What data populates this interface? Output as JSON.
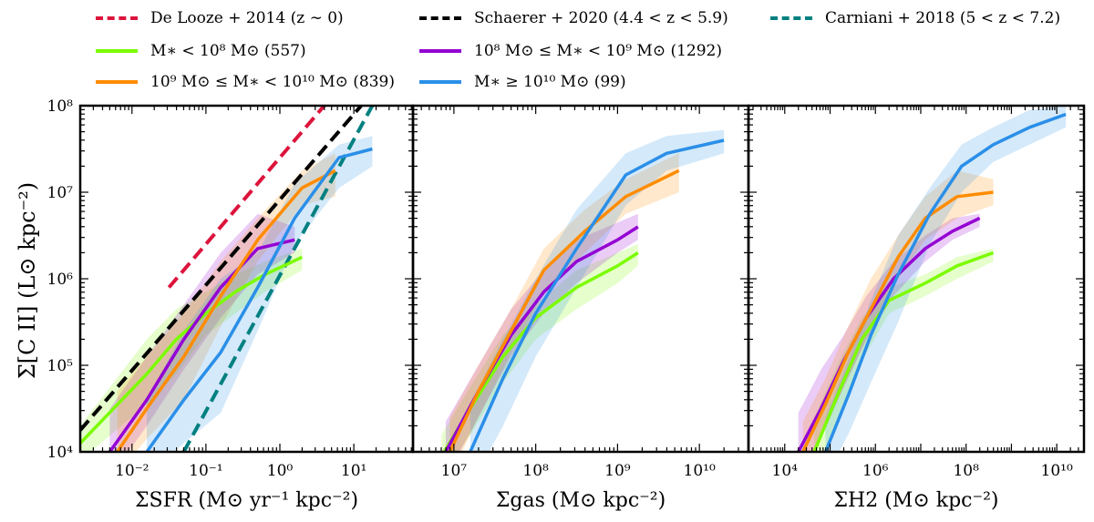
{
  "legend": [
    {
      "key": "delooze",
      "label": "De Looze + 2014 (z ∼ 0)",
      "color": "#dc143c",
      "style": "dashed"
    },
    {
      "key": "schaerer",
      "label": "Schaerer + 2020 (4.4 < z < 5.9)",
      "color": "#000000",
      "style": "dashed"
    },
    {
      "key": "carniani",
      "label": "Carniani + 2018 (5 < z < 7.2)",
      "color": "#008080",
      "style": "dashed"
    },
    {
      "key": "m8",
      "label": "M∗ < 10⁸ M⊙ (557)",
      "color": "#7cfc00",
      "style": "solid"
    },
    {
      "key": "m89",
      "label": "10⁸ M⊙ ≤ M∗ < 10⁹ M⊙ (1292)",
      "color": "#9400d3",
      "style": "solid"
    },
    {
      "key": "m910",
      "label": "10⁹ M⊙ ≤ M∗ < 10¹⁰ M⊙ (839)",
      "color": "#ff8c00",
      "style": "solid"
    },
    {
      "key": "m10",
      "label": "M∗ ≥ 10¹⁰ M⊙ (99)",
      "color": "#2a8fe8",
      "style": "solid"
    }
  ],
  "ylabel": "Σ[C II] (L⊙ kpc⁻²)",
  "chart_data": [
    {
      "type": "line",
      "panel": "sfr",
      "xlabel": "ΣSFR (M⊙ yr⁻¹ kpc⁻²)",
      "xlim_log10": [
        -2.7,
        1.8
      ],
      "ylim_log10": [
        4,
        8
      ],
      "xticks": [
        {
          "v": -2,
          "label": "10⁻²"
        },
        {
          "v": -1,
          "label": "10⁻¹"
        },
        {
          "v": 0,
          "label": "10⁰"
        },
        {
          "v": 1,
          "label": "10¹"
        }
      ],
      "yticks": [
        {
          "v": 4,
          "label": "10⁴"
        },
        {
          "v": 5,
          "label": "10⁵"
        },
        {
          "v": 6,
          "label": "10⁶"
        },
        {
          "v": 7,
          "label": "10⁷"
        },
        {
          "v": 8,
          "label": "10⁸"
        }
      ],
      "relations": [
        {
          "key": "delooze",
          "x": [
            -1.5,
            0.6
          ],
          "y": [
            5.9,
            8.0
          ]
        },
        {
          "key": "schaerer",
          "x": [
            -2.7,
            1.1
          ],
          "y": [
            4.25,
            8.0
          ]
        },
        {
          "key": "carniani",
          "x": [
            -1.3,
            1.25
          ],
          "y": [
            4.0,
            8.0
          ]
        }
      ],
      "series": [
        {
          "key": "m8",
          "x": [
            -2.7,
            -1.8,
            -1.4,
            -1.0,
            -0.6,
            -0.2,
            0.3
          ],
          "y": [
            4.1,
            4.9,
            5.3,
            5.6,
            5.85,
            6.05,
            6.25
          ],
          "lo": [
            3.9,
            4.55,
            4.9,
            5.35,
            5.6,
            5.85,
            6.1
          ],
          "hi": [
            4.3,
            5.3,
            5.65,
            5.85,
            6.05,
            6.2,
            6.35
          ]
        },
        {
          "key": "m89",
          "x": [
            -2.3,
            -1.8,
            -1.3,
            -0.8,
            -0.3,
            0.2
          ],
          "y": [
            4.0,
            4.6,
            5.3,
            5.9,
            6.35,
            6.45
          ],
          "lo": [
            3.7,
            4.3,
            4.95,
            5.55,
            6.05,
            6.3
          ],
          "hi": [
            4.5,
            5.1,
            5.7,
            6.3,
            6.75,
            6.6
          ]
        },
        {
          "key": "m910",
          "x": [
            -2.2,
            -1.8,
            -1.3,
            -0.8,
            -0.3,
            0.3,
            0.75
          ],
          "y": [
            4.0,
            4.5,
            5.1,
            5.8,
            6.45,
            7.05,
            7.25
          ],
          "lo": [
            3.75,
            4.15,
            4.6,
            5.45,
            6.2,
            6.85,
            6.95
          ],
          "hi": [
            4.7,
            5.1,
            5.6,
            6.2,
            6.7,
            7.25,
            7.45
          ]
        },
        {
          "key": "m10",
          "x": [
            -1.8,
            -1.3,
            -0.8,
            -0.3,
            0.2,
            0.8,
            1.25
          ],
          "y": [
            4.0,
            4.6,
            5.15,
            5.9,
            6.7,
            7.4,
            7.5
          ],
          "lo": [
            3.7,
            4.1,
            4.45,
            5.4,
            6.4,
            7.05,
            7.3
          ],
          "hi": [
            4.6,
            5.4,
            6.0,
            6.3,
            7.1,
            7.55,
            7.65
          ]
        }
      ]
    },
    {
      "type": "line",
      "panel": "gas",
      "xlabel": "Σgas (M⊙ kpc⁻²)",
      "xlim_log10": [
        6.5,
        10.6
      ],
      "ylim_log10": [
        4,
        8
      ],
      "xticks": [
        {
          "v": 7,
          "label": "10⁷"
        },
        {
          "v": 8,
          "label": "10⁸"
        },
        {
          "v": 9,
          "label": "10⁹"
        },
        {
          "v": 10,
          "label": "10¹⁰"
        }
      ],
      "series": [
        {
          "key": "m8",
          "x": [
            6.85,
            7.2,
            7.6,
            8.0,
            8.5,
            9.0,
            9.25
          ],
          "y": [
            3.95,
            4.5,
            5.1,
            5.55,
            5.9,
            6.15,
            6.3
          ],
          "lo": [
            3.7,
            4.2,
            4.8,
            5.3,
            5.65,
            5.95,
            6.15
          ],
          "hi": [
            4.2,
            4.75,
            5.35,
            5.7,
            6.1,
            6.3,
            6.4
          ]
        },
        {
          "key": "m89",
          "x": [
            6.9,
            7.3,
            7.7,
            8.1,
            8.5,
            9.0,
            9.25
          ],
          "y": [
            4.0,
            4.7,
            5.35,
            5.85,
            6.2,
            6.45,
            6.6
          ],
          "lo": [
            3.7,
            4.4,
            5.1,
            5.6,
            5.95,
            6.3,
            6.45
          ],
          "hi": [
            4.35,
            5.0,
            5.65,
            6.1,
            6.45,
            6.65,
            6.75
          ]
        },
        {
          "key": "m910",
          "x": [
            6.95,
            7.3,
            7.7,
            8.1,
            8.6,
            9.1,
            9.75
          ],
          "y": [
            4.0,
            4.7,
            5.4,
            6.1,
            6.55,
            6.95,
            7.25
          ],
          "lo": [
            3.7,
            4.4,
            5.15,
            5.85,
            6.3,
            6.75,
            7.0
          ],
          "hi": [
            4.4,
            5.0,
            5.65,
            6.35,
            6.8,
            7.15,
            7.45
          ]
        },
        {
          "key": "m10",
          "x": [
            7.2,
            7.6,
            8.0,
            8.5,
            9.1,
            9.6,
            10.3
          ],
          "y": [
            4.0,
            4.85,
            5.6,
            6.35,
            7.2,
            7.45,
            7.6
          ],
          "lo": [
            3.6,
            4.3,
            5.1,
            5.9,
            6.85,
            7.25,
            7.45
          ],
          "hi": [
            4.55,
            5.3,
            6.0,
            6.8,
            7.45,
            7.65,
            7.72
          ]
        }
      ]
    },
    {
      "type": "line",
      "panel": "h2",
      "xlabel": "ΣH2 (M⊙ kpc⁻²)",
      "xlim_log10": [
        3.2,
        10.6
      ],
      "ylim_log10": [
        4,
        8
      ],
      "xticks": [
        {
          "v": 4,
          "label": "10⁴"
        },
        {
          "v": 6,
          "label": "10⁶"
        },
        {
          "v": 8,
          "label": "10⁸"
        },
        {
          "v": 10,
          "label": "10¹⁰"
        }
      ],
      "series": [
        {
          "key": "m8",
          "x": [
            4.65,
            5.2,
            5.7,
            6.3,
            7.1,
            7.8,
            8.6
          ],
          "y": [
            4.0,
            4.7,
            5.3,
            5.75,
            5.95,
            6.15,
            6.3
          ],
          "lo": [
            3.6,
            4.35,
            5.05,
            5.6,
            5.8,
            6.0,
            6.2
          ],
          "hi": [
            4.4,
            5.05,
            5.55,
            5.9,
            6.05,
            6.25,
            6.35
          ]
        },
        {
          "key": "m89",
          "x": [
            4.3,
            4.8,
            5.3,
            5.8,
            6.4,
            7.1,
            7.7,
            8.3
          ],
          "y": [
            4.0,
            4.5,
            5.05,
            5.55,
            6.0,
            6.35,
            6.55,
            6.7
          ],
          "lo": [
            3.6,
            4.15,
            4.75,
            5.3,
            5.8,
            6.2,
            6.45,
            6.6
          ],
          "hi": [
            4.45,
            4.95,
            5.35,
            5.8,
            6.2,
            6.5,
            6.7,
            6.75
          ]
        },
        {
          "key": "m910",
          "x": [
            4.4,
            4.9,
            5.4,
            5.9,
            6.5,
            7.1,
            7.8,
            8.6
          ],
          "y": [
            4.0,
            4.55,
            5.15,
            5.65,
            6.25,
            6.7,
            6.95,
            7.0
          ],
          "lo": [
            3.7,
            4.3,
            4.85,
            5.4,
            6.0,
            6.45,
            6.7,
            6.85
          ],
          "hi": [
            4.35,
            4.85,
            5.45,
            6.0,
            6.5,
            6.95,
            7.25,
            7.15
          ]
        },
        {
          "key": "m10",
          "x": [
            4.9,
            5.4,
            5.9,
            6.5,
            7.2,
            7.9,
            8.6,
            9.4,
            10.2
          ],
          "y": [
            4.0,
            4.65,
            5.35,
            6.05,
            6.75,
            7.3,
            7.55,
            7.75,
            7.9
          ],
          "lo": [
            3.7,
            4.2,
            4.8,
            5.5,
            6.4,
            7.0,
            7.35,
            7.55,
            7.75
          ],
          "hi": [
            4.4,
            5.05,
            5.75,
            6.5,
            7.05,
            7.55,
            7.75,
            7.95,
            8.0
          ]
        }
      ]
    }
  ]
}
